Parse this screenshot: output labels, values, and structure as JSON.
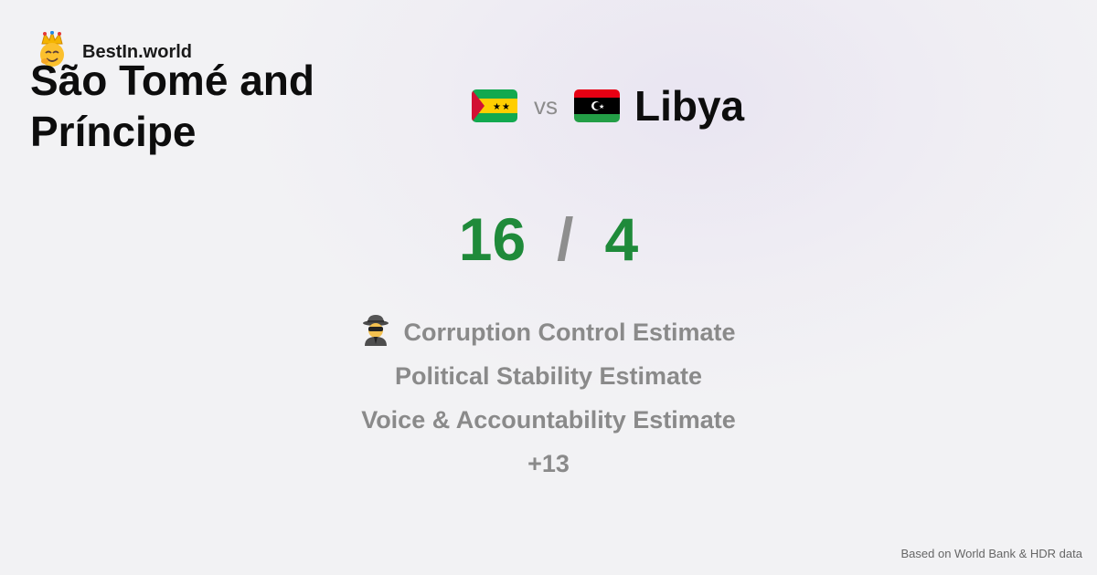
{
  "brand": {
    "name": "BestIn.world",
    "icon": "crowned-face-emoji"
  },
  "comparison": {
    "left_country": "São Tomé and Príncipe",
    "vs_label": "vs",
    "right_country": "Libya",
    "left_flag": "sao-tome-and-principe-flag",
    "right_flag": "libya-flag"
  },
  "score": {
    "left": "16",
    "separator": "/",
    "right": "4",
    "color": "#1f8a3a"
  },
  "metrics": {
    "icon": "spy-icon",
    "items": [
      "Corruption Control Estimate",
      "Political Stability Estimate",
      "Voice & Accountability Estimate"
    ],
    "more": "+13"
  },
  "footer": {
    "note": "Based on World Bank & HDR data"
  }
}
